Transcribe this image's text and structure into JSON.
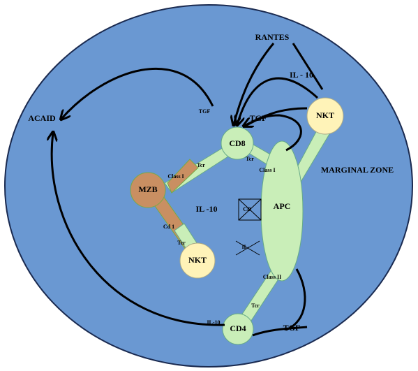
{
  "diagram": {
    "labels": {
      "rantes": "RANTES",
      "il10_top": "IL - 10",
      "tgf_acaid": "TGF",
      "tgf_cd8": "TGF",
      "acaid": "ACAID",
      "marginal_zone": "MARGINAL ZONE",
      "il10_center": "IL -10",
      "cd_crossed": "CD",
      "il_crossed": "IL-",
      "il10_cd4": "IL-10",
      "tgf_cd4": "TGF"
    },
    "nodes": [
      {
        "label": "CD8"
      },
      {
        "label": "APC"
      },
      {
        "label": "NKT"
      },
      {
        "label": "MZB"
      },
      {
        "label": "NKT"
      },
      {
        "label": "CD4"
      }
    ],
    "receptors": [
      {
        "label": "Tcr"
      },
      {
        "label": "Class I"
      },
      {
        "label": "Tcr"
      },
      {
        "label": "Class I"
      },
      {
        "label": "Cd 1"
      },
      {
        "label": "Tcr"
      },
      {
        "label": "Class II"
      },
      {
        "label": "Tcr"
      }
    ]
  }
}
